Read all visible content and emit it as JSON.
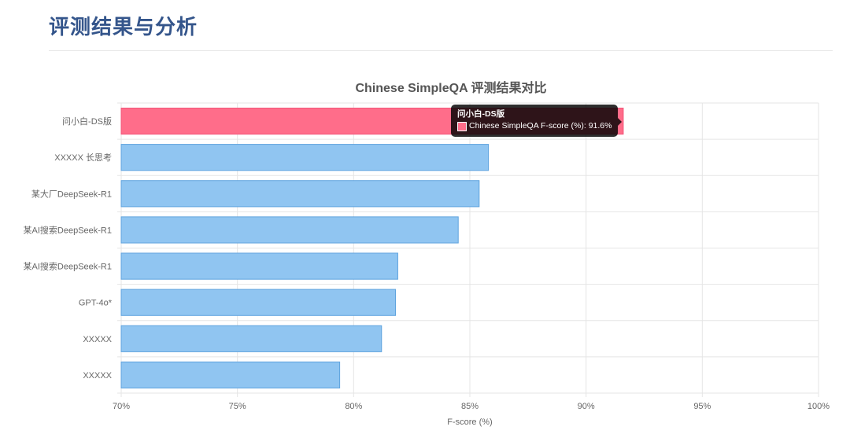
{
  "page": {
    "heading": "评测结果与分析"
  },
  "chart_data": {
    "type": "bar",
    "orientation": "horizontal",
    "title": "Chinese SimpleQA 评测结果对比",
    "xlabel": "F-score (%)",
    "ylabel": "",
    "xlim": [
      70,
      100
    ],
    "x_ticks": [
      "70%",
      "75%",
      "80%",
      "85%",
      "90%",
      "95%",
      "100%"
    ],
    "grid": true,
    "categories": [
      "问小白-DS版",
      "XXXXX 长思考",
      "某大厂DeepSeek-R1",
      "某AI搜索DeepSeek-R1",
      "某AI搜索DeepSeek-R1",
      "GPT-4o*",
      "XXXXX",
      "XXXXX"
    ],
    "series": [
      {
        "name": "Chinese SimpleQA F-score (%)",
        "values": [
          91.6,
          85.8,
          85.4,
          84.5,
          81.9,
          81.8,
          81.2,
          79.4
        ]
      }
    ],
    "highlight_index": 0,
    "colors": {
      "highlight_fill": "#ff6d8a",
      "highlight_stroke": "#f2557a",
      "bar_fill": "#90c5f1",
      "bar_stroke": "#5fa3de"
    }
  },
  "tooltip": {
    "title": "问小白-DS版",
    "text": "Chinese SimpleQA F-score (%): 91.6%"
  }
}
